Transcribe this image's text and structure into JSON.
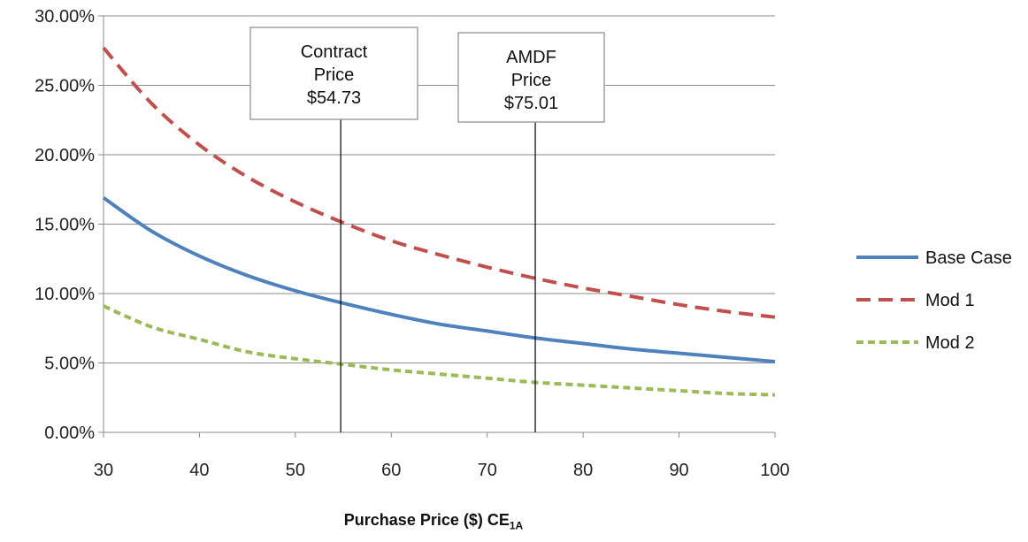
{
  "chart_data": {
    "type": "line",
    "xlabel_main": "Purchase Price ($) CE",
    "xlabel_sub": "1A",
    "xlim": [
      30,
      100
    ],
    "ylim": [
      0,
      30
    ],
    "x_ticks": [
      "30",
      "40",
      "50",
      "60",
      "70",
      "80",
      "90",
      "100"
    ],
    "y_ticks": [
      "0.00%",
      "5.00%",
      "10.00%",
      "15.00%",
      "20.00%",
      "25.00%",
      "30.00%"
    ],
    "grid": "horizontal",
    "legend_position": "right",
    "x": [
      30,
      35,
      40,
      45,
      50,
      55,
      60,
      65,
      70,
      75,
      80,
      85,
      90,
      95,
      100
    ],
    "series": [
      {
        "name": "Base Case",
        "style": "solid",
        "color": "#4f81bd",
        "values": [
          16.9,
          14.5,
          12.7,
          11.3,
          10.2,
          9.3,
          8.5,
          7.8,
          7.3,
          6.8,
          6.4,
          6.0,
          5.7,
          5.4,
          5.1
        ]
      },
      {
        "name": "Mod 1",
        "style": "dash",
        "color": "#c0504d",
        "values": [
          27.7,
          23.7,
          20.7,
          18.4,
          16.6,
          15.1,
          13.8,
          12.8,
          11.9,
          11.1,
          10.4,
          9.8,
          9.2,
          8.7,
          8.3
        ]
      },
      {
        "name": "Mod 2",
        "style": "dot",
        "color": "#9bbb59",
        "values": [
          9.1,
          7.6,
          6.7,
          5.8,
          5.3,
          4.9,
          4.5,
          4.2,
          3.9,
          3.6,
          3.4,
          3.2,
          3.0,
          2.8,
          2.7
        ]
      }
    ],
    "annotations": [
      {
        "x": 54.73,
        "lines": [
          "Contract",
          "Price",
          "$54.73"
        ]
      },
      {
        "x": 75.01,
        "lines": [
          "AMDF",
          "Price",
          "$75.01"
        ]
      }
    ]
  }
}
